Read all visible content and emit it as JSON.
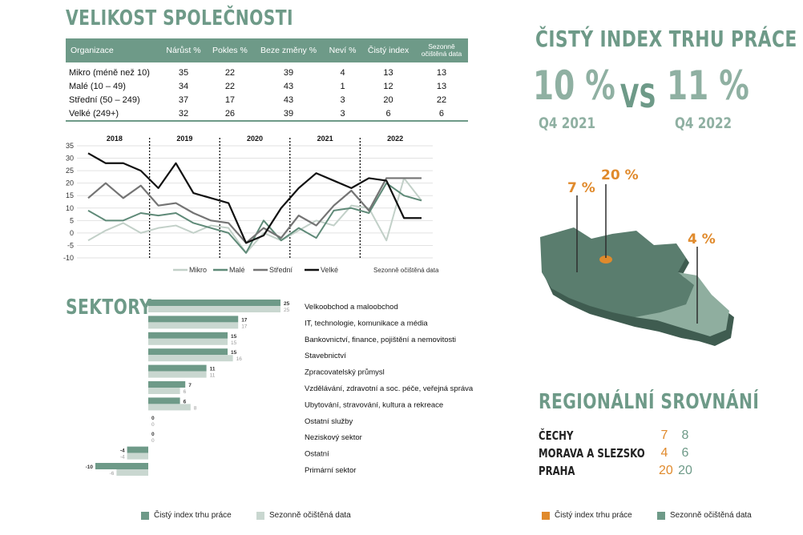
{
  "size_section": {
    "title": "VELIKOST SPOLEČNOSTI",
    "headers": [
      "Organizace",
      "Nárůst %",
      "Pokles %",
      "Beze změny %",
      "Neví %",
      "Čistý index",
      "Sezonně\nočištěná data"
    ],
    "rows": [
      [
        "Mikro (méně než 10)",
        "35",
        "22",
        "39",
        "4",
        "13",
        "13"
      ],
      [
        "Malé (10 – 49)",
        "34",
        "22",
        "43",
        "1",
        "12",
        "13"
      ],
      [
        "Střední (50 – 249)",
        "37",
        "17",
        "43",
        "3",
        "20",
        "22"
      ],
      [
        "Velké (249+)",
        "32",
        "26",
        "39",
        "3",
        "6",
        "6"
      ]
    ]
  },
  "colors": {
    "accent": "#6e9a88",
    "light": "#8fb0a2",
    "orange": "#e08a2c",
    "mikro": "#c2d0c8",
    "male": "#5f8a78",
    "stredni": "#747474",
    "velke": "#111111",
    "bar_main": "#6e9a88",
    "bar_seasonal": "#c9d7d0"
  },
  "chart_data": [
    {
      "type": "line",
      "year_labels": [
        "2018",
        "2019",
        "2020",
        "2021",
        "2022"
      ],
      "ylim": [
        -10,
        35
      ],
      "yticks": [
        -10,
        -5,
        0,
        5,
        10,
        15,
        20,
        25,
        30,
        35
      ],
      "x": [
        "2018 Q1",
        "2018 Q2",
        "2018 Q3",
        "2018 Q4",
        "2019 Q1",
        "2019 Q2",
        "2019 Q3",
        "2019 Q4",
        "2020 Q1",
        "2020 Q2",
        "2020 Q3",
        "2020 Q4",
        "2021 Q1",
        "2021 Q2",
        "2021 Q3",
        "2021 Q4",
        "2022 Q1",
        "2022 Q2",
        "2022 Q3",
        "2022 Q4"
      ],
      "series": [
        {
          "name": "Mikro",
          "values": [
            -3,
            1,
            4,
            0,
            2,
            3,
            0,
            3,
            2,
            -8,
            0,
            -3,
            1,
            5,
            3,
            11,
            10,
            -3,
            22,
            13
          ]
        },
        {
          "name": "Malé",
          "values": [
            9,
            5,
            5,
            8,
            7,
            8,
            4,
            2,
            0,
            -8,
            5,
            -3,
            2,
            -2,
            9,
            10,
            8,
            20,
            15,
            13
          ]
        },
        {
          "name": "Střední",
          "values": [
            14,
            20,
            14,
            19,
            11,
            12,
            8,
            5,
            4,
            -4,
            2,
            -2,
            7,
            3,
            11,
            17,
            9,
            22,
            22,
            22
          ]
        },
        {
          "name": "Velké",
          "values": [
            32,
            28,
            28,
            25,
            18,
            28,
            16,
            14,
            12,
            -4,
            -1,
            10,
            18,
            24,
            21,
            18,
            22,
            21,
            6,
            6
          ]
        }
      ],
      "note": "Sezonně očištěná data"
    },
    {
      "type": "bar",
      "orientation": "horizontal",
      "categories": [
        "Velkoobchod a maloobchod",
        "IT, technologie, komunikace a média",
        "Bankovnictví, finance, pojištění a nemovitosti",
        "Stavebnictví",
        "Zpracovatelský průmysl",
        "Vzdělávání, zdravotní a soc. péče, veřejná správa",
        "Ubytování, stravování, kultura a rekreace",
        "Ostatní služby",
        "Neziskový sektor",
        "Ostatní",
        "Primární sektor"
      ],
      "series": [
        {
          "name": "Čistý index trhu práce",
          "values": [
            25,
            17,
            15,
            15,
            11,
            7,
            6,
            0,
            0,
            -4,
            -10
          ]
        },
        {
          "name": "Sezonně očištěná data",
          "values": [
            25,
            17,
            15,
            16,
            11,
            6,
            8,
            0,
            0,
            -4,
            -6
          ]
        }
      ]
    }
  ],
  "sectors": {
    "title": "SEKTORY",
    "legend_main": "Čistý index trhu práce",
    "legend_seasonal": "Sezonně očištěná data"
  },
  "index": {
    "title": "ČISTÝ INDEX TRHU PRÁCE",
    "value_2021": "10 %",
    "value_2022": "11 %",
    "vs": "VS",
    "label_2021": "Q4 2021",
    "label_2022": "Q4 2022"
  },
  "map": {
    "label_west": "7 %",
    "label_center": "20 %",
    "label_east": "4 %"
  },
  "regional": {
    "title": "REGIONÁLNÍ SROVNÁNÍ",
    "rows": [
      {
        "name": "ČECHY",
        "index": "7",
        "seasonal": "8"
      },
      {
        "name": "MORAVA A SLEZSKO",
        "index": "4",
        "seasonal": "6"
      },
      {
        "name": "PRAHA",
        "index": "20",
        "seasonal": "20"
      }
    ],
    "legend_main": "Čistý index trhu práce",
    "legend_seasonal": "Sezonně očištěná data"
  }
}
